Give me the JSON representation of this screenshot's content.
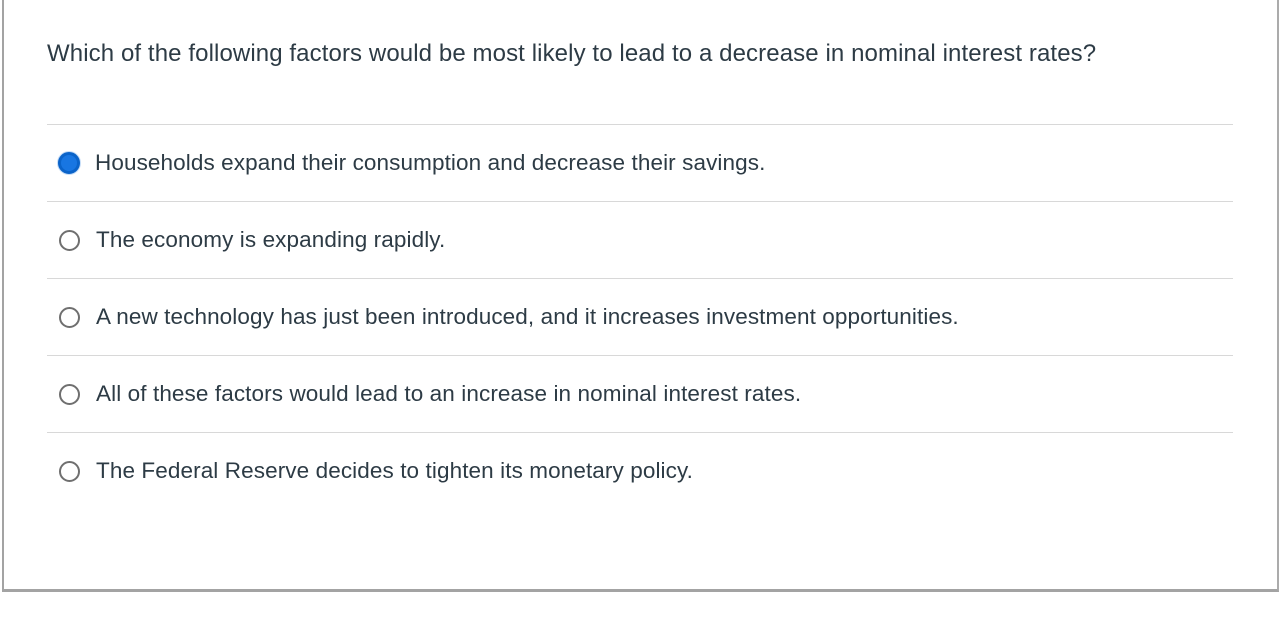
{
  "question": {
    "text": "Which of the following factors would be most likely to lead to a decrease in nominal interest rates?"
  },
  "options": [
    {
      "label": "Households expand their consumption and decrease their savings.",
      "selected": true
    },
    {
      "label": "The economy is expanding rapidly.",
      "selected": false
    },
    {
      "label": "A new technology has just been introduced, and it increases investment opportunities.",
      "selected": false
    },
    {
      "label": "All of these factors would lead to an increase in nominal interest rates.",
      "selected": false
    },
    {
      "label": "The Federal Reserve decides to tighten its monetary policy.",
      "selected": false
    }
  ],
  "colors": {
    "text": "#2D3B45",
    "radio_selected_fill": "#1876E2",
    "radio_selected_border": "#0A63C9",
    "radio_unselected_border": "#6F6F6F",
    "divider": "#D8D8D8",
    "frame_border": "#A3A3A3"
  }
}
